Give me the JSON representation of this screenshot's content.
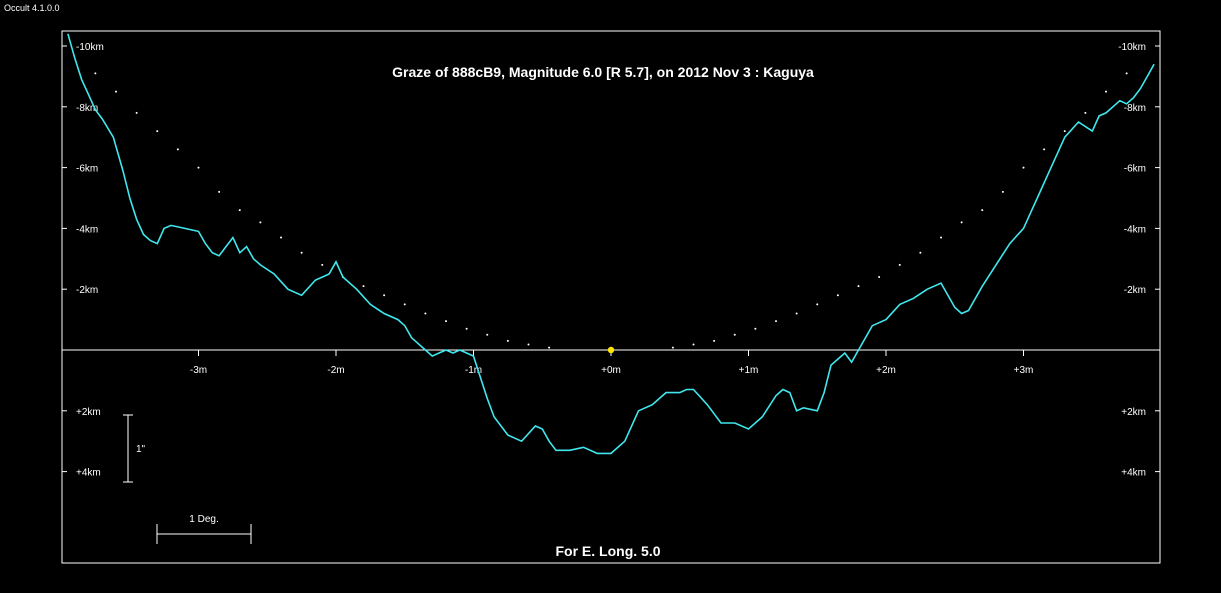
{
  "window": {
    "app_label": "Occult 4.1.0.0"
  },
  "plot": {
    "title": "Graze of  888cB9,  Magnitude 6.0 [R 5.7],  on 2012 Nov  3  :  Kaguya",
    "footer": "For E. Long. 5.0",
    "y_ticks": [
      "-10km",
      "-8km",
      "-6km",
      "-4km",
      "-2km",
      "+2km",
      "+4km"
    ],
    "y_tick_values": [
      -10,
      -8,
      -6,
      -4,
      -2,
      2,
      4
    ],
    "x_ticks": [
      "-3m",
      "-2m",
      "-1m",
      "+0m",
      "+1m",
      "+2m",
      "+3m"
    ],
    "x_tick_values": [
      -3,
      -2,
      -1,
      0,
      1,
      2,
      3
    ],
    "scale_arcsec_label": "1\"",
    "scale_deg_label": "1 Deg.",
    "colors": {
      "profile": "#3fe8ee",
      "background": "#000000",
      "frame": "#ffffff",
      "star": "#ffe600"
    }
  },
  "chart_data": {
    "type": "line",
    "title": "Graze of  888cB9,  Magnitude 6.0 [R 5.7],  on 2012 Nov  3  :  Kaguya",
    "xlabel": "",
    "ylabel": "",
    "xlim": [
      -4,
      4
    ],
    "ylim": [
      -11.5,
      7
    ],
    "y_axis_inverted": true,
    "grid": false,
    "series": [
      {
        "style": "line",
        "x": [
          -3.95,
          -3.9,
          -3.85,
          -3.8,
          -3.75,
          -3.7,
          -3.62,
          -3.55,
          -3.5,
          -3.45,
          -3.4,
          -3.35,
          -3.3,
          -3.25,
          -3.2,
          -3.1,
          -3.0,
          -2.95,
          -2.9,
          -2.85,
          -2.8,
          -2.75,
          -2.7,
          -2.65,
          -2.6,
          -2.55,
          -2.45,
          -2.35,
          -2.25,
          -2.15,
          -2.05,
          -2.0,
          -1.95,
          -1.85,
          -1.75,
          -1.65,
          -1.55,
          -1.5,
          -1.45,
          -1.35,
          -1.3,
          -1.25,
          -1.2,
          -1.15,
          -1.1,
          -1.05,
          -1.0,
          -0.95,
          -0.9,
          -0.85,
          -0.75,
          -0.65,
          -0.55,
          -0.5,
          -0.45,
          -0.4,
          -0.3,
          -0.2,
          -0.1,
          0.0,
          0.1,
          0.2,
          0.3,
          0.4,
          0.5,
          0.55,
          0.6,
          0.7,
          0.8,
          0.9,
          1.0,
          1.1,
          1.2,
          1.25,
          1.3,
          1.35,
          1.4,
          1.5,
          1.55,
          1.6,
          1.65,
          1.7,
          1.75,
          1.8,
          1.9,
          2.0,
          2.1,
          2.2,
          2.3,
          2.4,
          2.5,
          2.55,
          2.6,
          2.7,
          2.8,
          2.9,
          3.0,
          3.05,
          3.1,
          3.2,
          3.3,
          3.4,
          3.5,
          3.55,
          3.6,
          3.65,
          3.7,
          3.75,
          3.8,
          3.85,
          3.9,
          3.95
        ],
        "y": [
          -10.4,
          -9.6,
          -8.9,
          -8.4,
          -7.9,
          -7.6,
          -7.0,
          -5.9,
          -5.0,
          -4.3,
          -3.8,
          -3.6,
          -3.5,
          -4.0,
          -4.1,
          -4.0,
          -3.9,
          -3.5,
          -3.2,
          -3.1,
          -3.4,
          -3.7,
          -3.2,
          -3.4,
          -3.0,
          -2.8,
          -2.5,
          -2.0,
          -1.8,
          -2.3,
          -2.5,
          -2.9,
          -2.4,
          -2.0,
          -1.5,
          -1.2,
          -1.0,
          -0.8,
          -0.4,
          0.0,
          0.2,
          0.1,
          0.0,
          0.1,
          0.0,
          0.1,
          0.2,
          0.9,
          1.6,
          2.2,
          2.8,
          3.0,
          2.5,
          2.6,
          3.0,
          3.3,
          3.3,
          3.2,
          3.4,
          3.4,
          3.0,
          2.0,
          1.8,
          1.4,
          1.4,
          1.3,
          1.3,
          1.8,
          2.4,
          2.4,
          2.6,
          2.2,
          1.5,
          1.3,
          1.4,
          2.0,
          1.9,
          2.0,
          1.4,
          0.5,
          0.3,
          0.1,
          0.4,
          0.0,
          -0.8,
          -1.0,
          -1.5,
          -1.7,
          -2.0,
          -2.2,
          -1.4,
          -1.2,
          -1.3,
          -2.1,
          -2.8,
          -3.5,
          -4.0,
          -4.5,
          -5.0,
          -6.0,
          -7.0,
          -7.5,
          -7.2,
          -7.7,
          -7.8,
          -8.0,
          -8.2,
          -8.1,
          -8.3,
          -8.6,
          -9.0,
          -9.4
        ]
      },
      {
        "style": "dotted",
        "x": [
          -3.75,
          -3.6,
          -3.45,
          -3.3,
          -3.15,
          -3.0,
          -2.85,
          -2.7,
          -2.55,
          -2.4,
          -2.25,
          -2.1,
          -1.95,
          -1.8,
          -1.65,
          -1.5,
          -1.35,
          -1.2,
          -1.05,
          -0.9,
          -0.75,
          -0.6,
          -0.45,
          0.45,
          0.6,
          0.75,
          0.9,
          1.05,
          1.2,
          1.35,
          1.5,
          1.65,
          1.8,
          1.95,
          2.1,
          2.25,
          2.4,
          2.55,
          2.7,
          2.85,
          3.0,
          3.15,
          3.3,
          3.45,
          3.6,
          3.75
        ],
        "y": [
          -9.1,
          -8.5,
          -7.8,
          -7.2,
          -6.6,
          -6.0,
          -5.2,
          -4.6,
          -4.2,
          -3.7,
          -3.2,
          -2.8,
          -2.4,
          -2.1,
          -1.8,
          -1.5,
          -1.2,
          -0.95,
          -0.7,
          -0.5,
          -0.3,
          -0.18,
          -0.08,
          -0.08,
          -0.18,
          -0.3,
          -0.5,
          -0.7,
          -0.95,
          -1.2,
          -1.5,
          -1.8,
          -2.1,
          -2.4,
          -2.8,
          -3.2,
          -3.7,
          -4.2,
          -4.6,
          -5.2,
          -6.0,
          -6.6,
          -7.2,
          -7.8,
          -8.5,
          -9.1
        ]
      }
    ],
    "markers": [
      {
        "x": 0,
        "y": 0,
        "color": "#ffe600"
      }
    ]
  }
}
